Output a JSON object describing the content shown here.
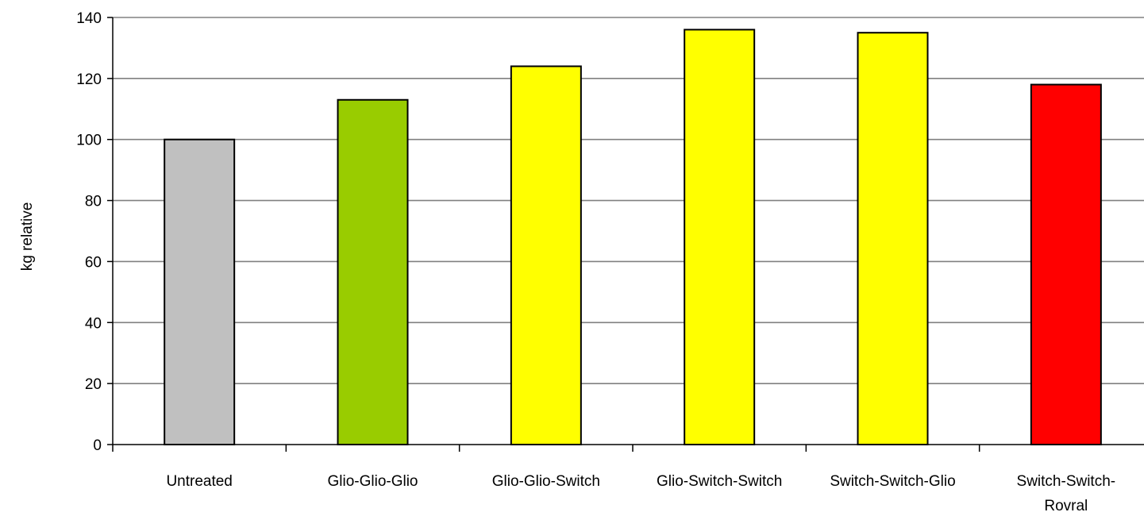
{
  "chart_data": {
    "type": "bar",
    "title": "",
    "xlabel": "",
    "ylabel": "kg relative",
    "ylim": [
      0,
      140
    ],
    "yticks": [
      0,
      20,
      40,
      60,
      80,
      100,
      120,
      140
    ],
    "grid": true,
    "legend": "none",
    "categories": [
      "Untreated",
      "Glio-Glio-Glio",
      "Glio-Glio-Switch",
      "Glio-Switch-Switch",
      "Switch-Switch-Glio",
      "Switch-Switch-Rovral"
    ],
    "category_lines": [
      [
        "Untreated"
      ],
      [
        "Glio-Glio-Glio"
      ],
      [
        "Glio-Glio-Switch"
      ],
      [
        "Glio-Switch-Switch"
      ],
      [
        "Switch-Switch-Glio"
      ],
      [
        "Switch-Switch-",
        "Rovral"
      ]
    ],
    "values": [
      100,
      113,
      124,
      136,
      135,
      118
    ],
    "colors": [
      "#c0c0c0",
      "#99cc00",
      "#ffff00",
      "#ffff00",
      "#ffff00",
      "#ff0000"
    ]
  }
}
